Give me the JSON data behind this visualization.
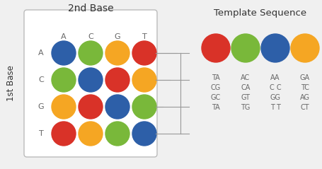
{
  "title_2nd": "2nd Base",
  "title_template": "Template Sequence",
  "label_1st": "1st Base",
  "col_labels": [
    "A",
    "C",
    "G",
    "T"
  ],
  "row_labels": [
    "A",
    "C",
    "G",
    "T"
  ],
  "colors": {
    "red": "#d93228",
    "green": "#79b83a",
    "blue": "#2d5fa8",
    "orange": "#f5a623"
  },
  "grid_colors": [
    [
      "blue",
      "green",
      "orange",
      "red"
    ],
    [
      "green",
      "blue",
      "red",
      "orange"
    ],
    [
      "orange",
      "red",
      "blue",
      "green"
    ],
    [
      "red",
      "orange",
      "green",
      "blue"
    ]
  ],
  "legend_colors": [
    "red",
    "green",
    "blue",
    "orange"
  ],
  "legend_texts": [
    [
      "TA",
      "CG",
      "GC",
      "TA"
    ],
    [
      "AC",
      "CA",
      "GT",
      "TG"
    ],
    [
      "AA",
      "C C",
      "GG",
      "T T"
    ],
    [
      "GA",
      "TC",
      "AG",
      "CT"
    ]
  ],
  "background": "#f0f0f0",
  "box_color": "#ffffff",
  "line_color": "#999999",
  "label_color": "#666666",
  "title_color": "#333333"
}
